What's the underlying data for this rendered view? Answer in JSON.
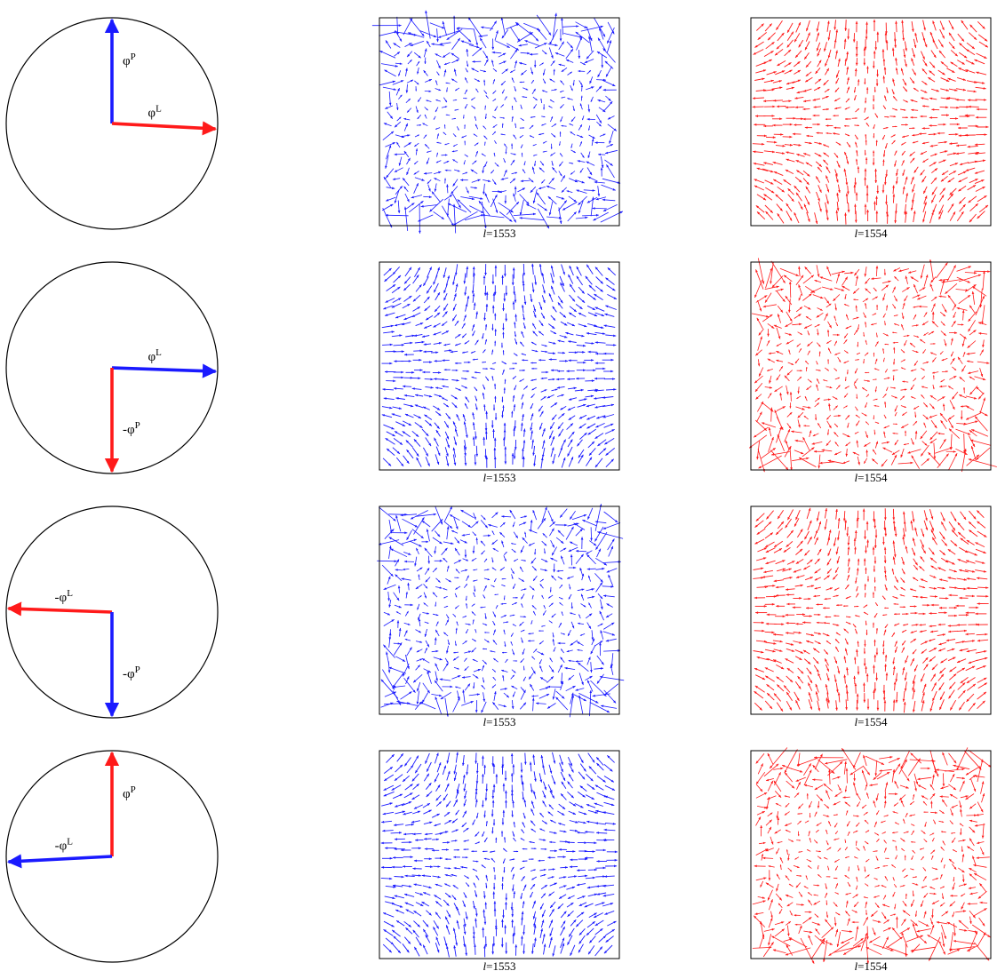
{
  "figure": {
    "colors": {
      "blue": "#1a1aff",
      "red": "#ff1a1a",
      "frame": "#000000"
    },
    "rows": [
      {
        "arrows": [
          {
            "name": "phi-P",
            "color": "blue",
            "direction_deg": 90,
            "prefix": "",
            "symbol": "φ",
            "superscript": "P"
          },
          {
            "name": "phi-L",
            "color": "red",
            "direction_deg": -3,
            "prefix": "",
            "symbol": "φ",
            "superscript": "L"
          }
        ],
        "panels": [
          {
            "color": "blue",
            "pattern": "noisy-edges",
            "label_italic": "l",
            "label_rest": "=1553"
          },
          {
            "color": "red",
            "pattern": "smooth-saddle",
            "label_italic": "l",
            "label_rest": "=1554"
          }
        ]
      },
      {
        "arrows": [
          {
            "name": "phi-L",
            "color": "blue",
            "direction_deg": -2,
            "prefix": "",
            "symbol": "φ",
            "superscript": "L"
          },
          {
            "name": "minus-phi-P",
            "color": "red",
            "direction_deg": 270,
            "prefix": "-",
            "symbol": "φ",
            "superscript": "P"
          }
        ],
        "panels": [
          {
            "color": "blue",
            "pattern": "smooth-saddle",
            "label_italic": "l",
            "label_rest": "=1553"
          },
          {
            "color": "red",
            "pattern": "noisy-corners",
            "label_italic": "l",
            "label_rest": "=1554"
          }
        ]
      },
      {
        "arrows": [
          {
            "name": "minus-phi-L",
            "color": "red",
            "direction_deg": 178,
            "prefix": "-",
            "symbol": "φ",
            "superscript": "L"
          },
          {
            "name": "minus-phi-P",
            "color": "blue",
            "direction_deg": 270,
            "prefix": "-",
            "symbol": "φ",
            "superscript": "P"
          }
        ],
        "panels": [
          {
            "color": "blue",
            "pattern": "noisy-corners",
            "label_italic": "l",
            "label_rest": "=1553"
          },
          {
            "color": "red",
            "pattern": "smooth-saddle",
            "label_italic": "l",
            "label_rest": "=1554"
          }
        ]
      },
      {
        "arrows": [
          {
            "name": "phi-P",
            "color": "red",
            "direction_deg": 90,
            "prefix": "",
            "symbol": "φ",
            "superscript": "P"
          },
          {
            "name": "minus-phi-L",
            "color": "blue",
            "direction_deg": 183,
            "prefix": "-",
            "symbol": "φ",
            "superscript": "L"
          }
        ],
        "panels": [
          {
            "color": "blue",
            "pattern": "smooth-saddle",
            "label_italic": "l",
            "label_rest": "=1553"
          },
          {
            "color": "red",
            "pattern": "noisy-edges",
            "label_italic": "l",
            "label_rest": "=1554"
          }
        ]
      }
    ]
  }
}
